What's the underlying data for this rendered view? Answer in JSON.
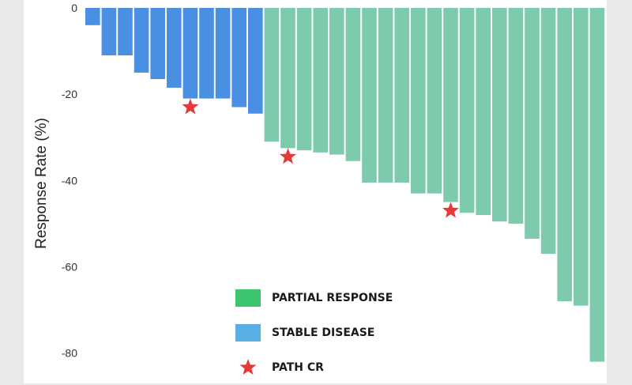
{
  "chart_data": {
    "type": "bar",
    "ylabel": "Response Rate (%)",
    "ylim": [
      -83,
      0
    ],
    "yticks": [
      0,
      -20,
      -40,
      -60,
      -80
    ],
    "series": [
      {
        "name": "STABLE DISEASE",
        "color": "#4a90e2",
        "values": [
          -4,
          -11,
          -11,
          -15,
          -16.5,
          -18.5,
          -21,
          -21,
          -21,
          -23,
          -24.5
        ]
      },
      {
        "name": "PARTIAL RESPONSE",
        "color": "#7dcaac",
        "values": [
          -31,
          -32.5,
          -33,
          -33.5,
          -34,
          -35.5,
          -40.5,
          -40.5,
          -40.5,
          -43,
          -43,
          -45,
          -47.5,
          -48,
          -49.5,
          -50,
          -53.5,
          -57,
          -68,
          -69,
          -82
        ]
      }
    ],
    "path_cr": [
      {
        "bar_index": 6,
        "value": -23
      },
      {
        "bar_index": 12,
        "value": -34.5
      },
      {
        "bar_index": 22,
        "value": -47
      }
    ],
    "legend": {
      "partial_response": {
        "label": "PARTIAL RESPONSE",
        "color": "#3cc46e"
      },
      "stable_disease": {
        "label": "STABLE DISEASE",
        "color": "#5aaee3"
      },
      "path_cr": {
        "label": "PATH CR",
        "color": "#e53935"
      }
    }
  }
}
